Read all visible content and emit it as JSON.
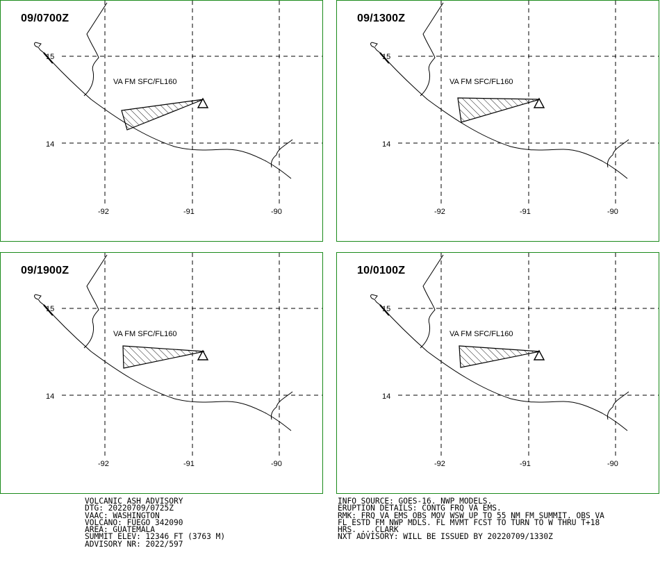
{
  "panels": [
    {
      "time": "09/0700Z",
      "va_label": "VA FM SFC/FL160",
      "lat_labels": [
        "15",
        "14"
      ],
      "lon_labels": [
        "-92",
        "-91",
        "-90"
      ]
    },
    {
      "time": "09/1300Z",
      "va_label": "VA FM SFC/FL160",
      "lat_labels": [
        "15",
        "14"
      ],
      "lon_labels": [
        "-92",
        "-91",
        "-90"
      ]
    },
    {
      "time": "09/1900Z",
      "va_label": "VA FM SFC/FL160",
      "lat_labels": [
        "15",
        "14"
      ],
      "lon_labels": [
        "-92",
        "-91",
        "-90"
      ]
    },
    {
      "time": "10/0100Z",
      "va_label": "VA FM SFC/FL160",
      "lat_labels": [
        "15",
        "14"
      ],
      "lon_labels": [
        "-92",
        "-91",
        "-90"
      ]
    }
  ],
  "advisory": {
    "left": [
      "VOLCANIC ASH ADVISORY",
      "DTG: 20220709/0725Z",
      "VAAC: WASHINGTON",
      "VOLCANO: FUEGO 342090",
      "AREA: GUATEMALA",
      "SUMMIT ELEV: 12346 FT (3763 M)",
      "ADVISORY NR: 2022/597"
    ],
    "right": [
      "INFO SOURCE: GOES-16. NWP MODELS.",
      "ERUPTION DETAILS: CONTG FRQ VA EMS.",
      "RMK: FRQ VA EMS OBS MOV WSW UP TO 55 NM FM SUMMIT. OBS VA",
      "FL ESTD FM NWP MDLS. FL MVMT FCST TO TURN TO W THRU T+18",
      "HRS. ...CLARK",
      "NXT ADVISORY: WILL BE ISSUED BY 20220709/1330Z"
    ]
  },
  "colors": {
    "border": "#1a8a1a",
    "ink": "#000000"
  }
}
